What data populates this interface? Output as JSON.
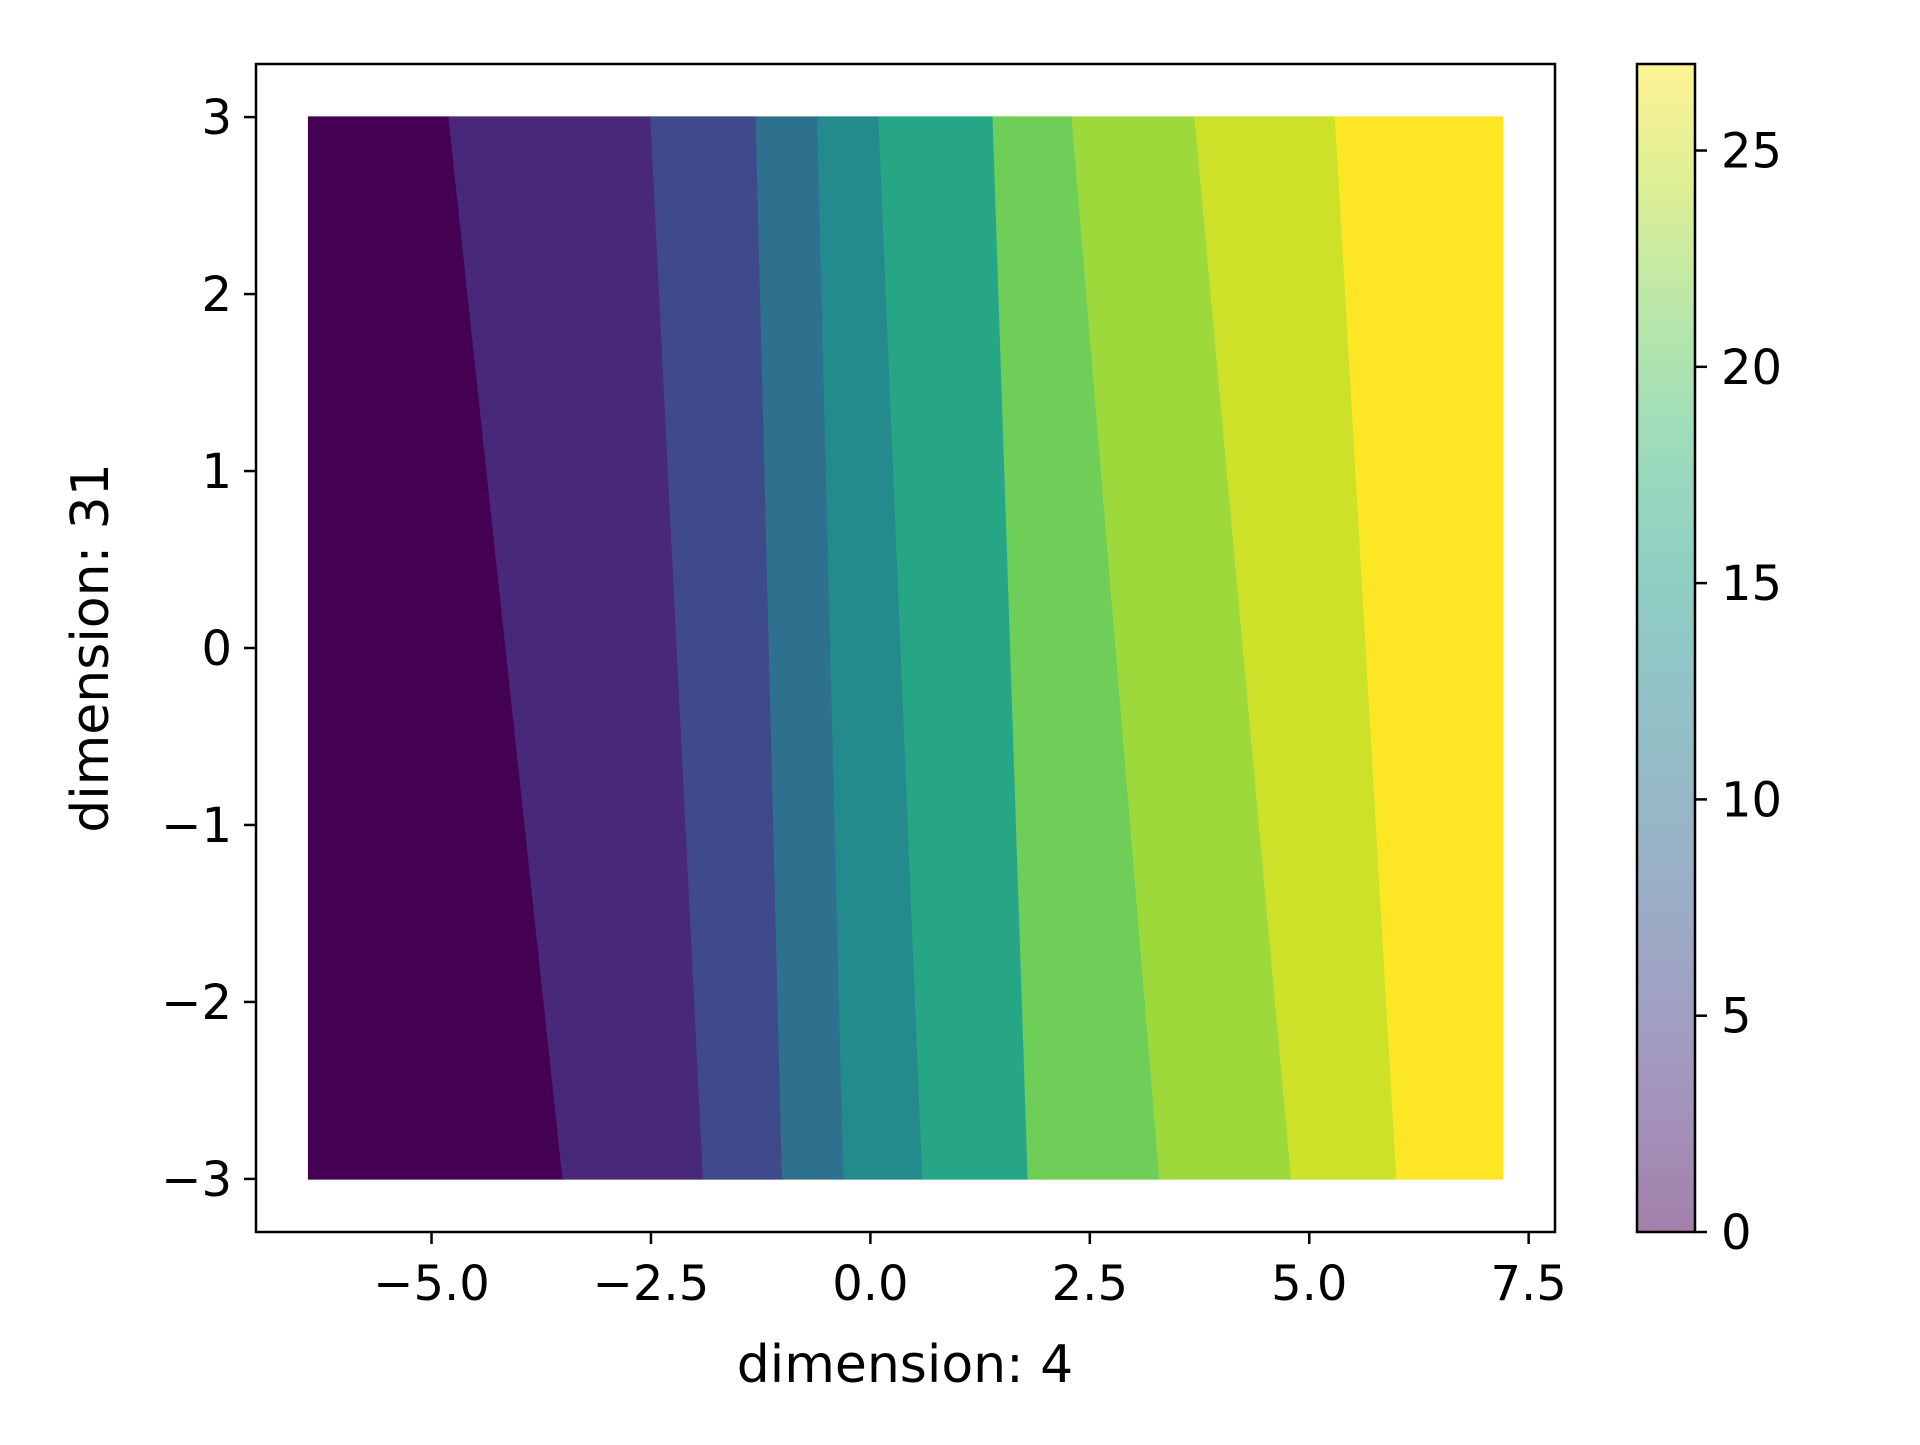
{
  "chart_data": {
    "type": "scatter",
    "xlabel": "dimension: 4",
    "ylabel": "dimension: 31",
    "xlim": [
      -7.0,
      7.8
    ],
    "ylim": [
      -3.3,
      3.3
    ],
    "x_ticks": [
      {
        "value": -5.0,
        "label": "−5.0"
      },
      {
        "value": -2.5,
        "label": "−2.5"
      },
      {
        "value": 0.0,
        "label": "0.0"
      },
      {
        "value": 2.5,
        "label": "2.5"
      },
      {
        "value": 5.0,
        "label": "5.0"
      },
      {
        "value": 7.5,
        "label": "7.5"
      }
    ],
    "y_ticks": [
      {
        "value": 3,
        "label": "3"
      },
      {
        "value": 2,
        "label": "2"
      },
      {
        "value": 1,
        "label": "1"
      },
      {
        "value": 0,
        "label": "0"
      },
      {
        "value": -1,
        "label": "−1"
      },
      {
        "value": -2,
        "label": "−2"
      },
      {
        "value": -3,
        "label": "−3"
      }
    ],
    "points_x_range": [
      -6.4,
      7.2
    ],
    "points_y_range": [
      -3.0,
      3.0
    ],
    "bands": [
      {
        "x_start_at_y_max": -6.4,
        "x_end_at_y_max": -4.8,
        "x_start_at_y_min": -6.4,
        "x_end_at_y_min": -3.5,
        "value": 0
      },
      {
        "x_start_at_y_max": -4.8,
        "x_end_at_y_max": -2.5,
        "x_start_at_y_min": -3.5,
        "x_end_at_y_min": -1.9,
        "value": 3
      },
      {
        "x_start_at_y_max": -2.5,
        "x_end_at_y_max": -1.3,
        "x_start_at_y_min": -1.9,
        "x_end_at_y_min": -1.0,
        "value": 6
      },
      {
        "x_start_at_y_max": -1.3,
        "x_end_at_y_max": -0.6,
        "x_start_at_y_min": -1.0,
        "x_end_at_y_min": -0.3,
        "value": 10
      },
      {
        "x_start_at_y_max": -0.6,
        "x_end_at_y_max": 0.1,
        "x_start_at_y_min": -0.3,
        "x_end_at_y_min": 0.6,
        "value": 13
      },
      {
        "x_start_at_y_max": 0.1,
        "x_end_at_y_max": 1.4,
        "x_start_at_y_min": 0.6,
        "x_end_at_y_min": 1.8,
        "value": 16
      },
      {
        "x_start_at_y_max": 1.4,
        "x_end_at_y_max": 2.3,
        "x_start_at_y_min": 1.8,
        "x_end_at_y_min": 3.3,
        "value": 21
      },
      {
        "x_start_at_y_max": 2.3,
        "x_end_at_y_max": 3.7,
        "x_start_at_y_min": 3.3,
        "x_end_at_y_min": 4.8,
        "value": 23
      },
      {
        "x_start_at_y_max": 3.7,
        "x_end_at_y_max": 5.3,
        "x_start_at_y_min": 4.8,
        "x_end_at_y_min": 6.0,
        "value": 25
      },
      {
        "x_start_at_y_max": 5.3,
        "x_end_at_y_max": 7.2,
        "x_start_at_y_min": 6.0,
        "x_end_at_y_min": 7.2,
        "value": 27
      }
    ],
    "colorbar": {
      "colormap": "viridis",
      "range": [
        0,
        27
      ],
      "alpha": 0.5,
      "ticks": [
        {
          "value": 0,
          "label": "0"
        },
        {
          "value": 5,
          "label": "5"
        },
        {
          "value": 10,
          "label": "10"
        },
        {
          "value": 15,
          "label": "15"
        },
        {
          "value": 20,
          "label": "20"
        },
        {
          "value": 25,
          "label": "25"
        }
      ]
    },
    "grid": false,
    "legend": "none"
  }
}
